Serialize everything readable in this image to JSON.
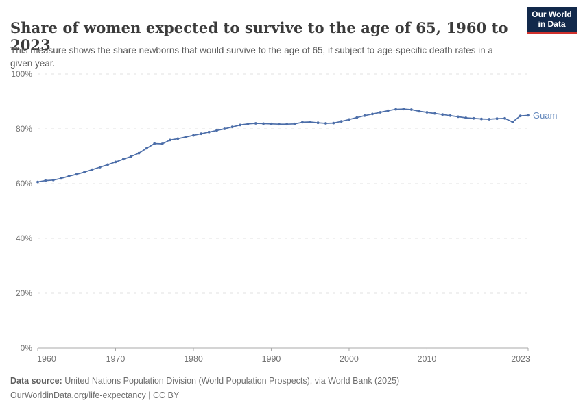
{
  "header": {
    "title": "Share of women expected to survive to the age of 65, 1960 to 2023",
    "subtitle": "This measure shows the share newborns that would survive to the age of 65, if subject to age-specific death rates in a given year.",
    "logo": {
      "line1": "Our World",
      "line2": "in Data"
    }
  },
  "chart_data": {
    "type": "line",
    "title": "Share of women expected to survive to the age of 65, 1960 to 2023",
    "xlabel": "",
    "ylabel": "",
    "xlim": [
      1960,
      2023
    ],
    "ylim": [
      0,
      100
    ],
    "x_ticks": [
      1960,
      1970,
      1980,
      1990,
      2000,
      2010,
      2023
    ],
    "y_ticks": [
      0,
      20,
      40,
      60,
      80,
      100
    ],
    "y_tick_suffix": "%",
    "grid": "horizontal-dashed",
    "legend_position": "end-of-line-label",
    "x": [
      1960,
      1961,
      1962,
      1963,
      1964,
      1965,
      1966,
      1967,
      1968,
      1969,
      1970,
      1971,
      1972,
      1973,
      1974,
      1975,
      1976,
      1977,
      1978,
      1979,
      1980,
      1981,
      1982,
      1983,
      1984,
      1985,
      1986,
      1987,
      1988,
      1989,
      1990,
      1991,
      1992,
      1993,
      1994,
      1995,
      1996,
      1997,
      1998,
      1999,
      2000,
      2001,
      2002,
      2003,
      2004,
      2005,
      2006,
      2007,
      2008,
      2009,
      2010,
      2011,
      2012,
      2013,
      2014,
      2015,
      2016,
      2017,
      2018,
      2019,
      2020,
      2021,
      2022,
      2023
    ],
    "series": [
      {
        "name": "Guam",
        "color": "#4c6ea9",
        "label_color": "#6488bc",
        "values": [
          60.6,
          61.1,
          61.3,
          61.9,
          62.7,
          63.4,
          64.2,
          65.1,
          66.0,
          66.9,
          67.9,
          68.9,
          69.9,
          71.1,
          72.9,
          74.6,
          74.5,
          75.9,
          76.4,
          77.0,
          77.6,
          78.2,
          78.8,
          79.4,
          80.0,
          80.7,
          81.4,
          81.8,
          82.0,
          81.9,
          81.8,
          81.7,
          81.7,
          81.8,
          82.4,
          82.5,
          82.2,
          82.0,
          82.1,
          82.7,
          83.4,
          84.1,
          84.8,
          85.4,
          86.0,
          86.6,
          87.1,
          87.2,
          87.0,
          86.4,
          86.0,
          85.6,
          85.2,
          84.8,
          84.4,
          84.0,
          83.8,
          83.6,
          83.5,
          83.7,
          83.8,
          82.5,
          84.7,
          84.9
        ]
      }
    ]
  },
  "footer": {
    "datasource_label": "Data source:",
    "datasource_text": " United Nations Population Division (World Population Prospects), via World Bank (2025)",
    "attribution": "OurWorldinData.org/life-expectancy | CC BY"
  },
  "colors": {
    "line": "#4c6ea9",
    "entity_label": "#6488bc",
    "gridline": "#e2e2e2",
    "axis_line": "#a8a8a8",
    "tick_text": "#737373",
    "logo_bg": "#12294b",
    "logo_accent": "#d0312d"
  }
}
